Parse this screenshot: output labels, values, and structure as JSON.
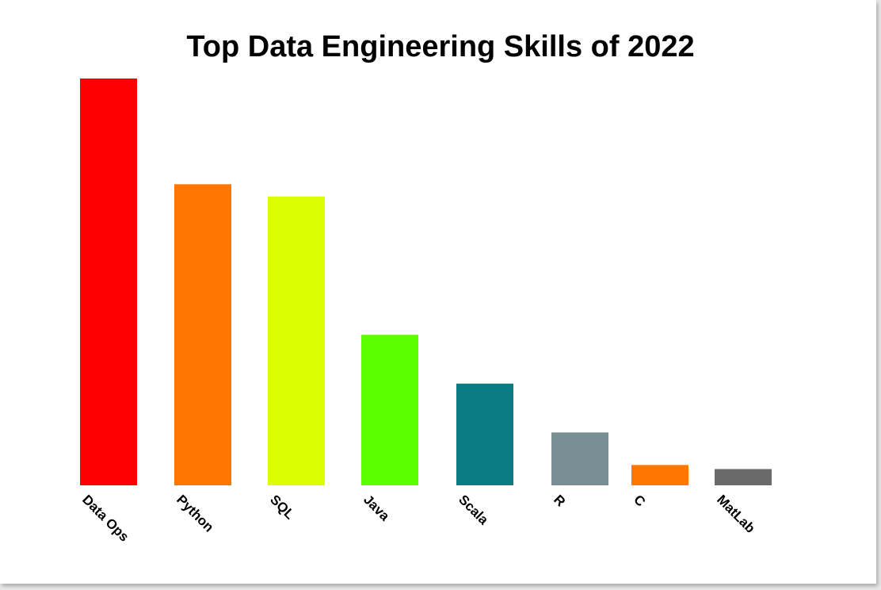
{
  "chart_data": {
    "type": "bar",
    "title": "Top Data Engineering Skills of 2022",
    "xlabel": "",
    "ylabel": "",
    "ylim": [
      0,
      100
    ],
    "categories": [
      "Data Ops",
      "Python",
      "SQL",
      "Java",
      "Scala",
      "R",
      "C",
      "MatLab"
    ],
    "values": [
      100,
      74,
      71,
      37,
      25,
      13,
      5,
      4
    ],
    "colors": [
      "#ff0000",
      "#ff7700",
      "#dbff00",
      "#5cff00",
      "#0b7b82",
      "#7a8f94",
      "#ff7700",
      "#6a6a6a"
    ],
    "grid": false,
    "legend": "none"
  }
}
